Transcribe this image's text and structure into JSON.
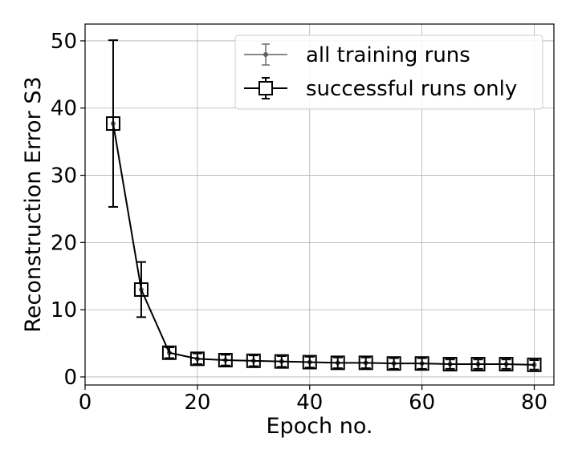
{
  "chart_data": {
    "type": "line",
    "title": "",
    "xlabel": "Epoch no.",
    "ylabel": "Reconstruction Error S3",
    "xlim": [
      0,
      83.5
    ],
    "ylim": [
      -1.2,
      52.5
    ],
    "xticks": [
      0,
      20,
      40,
      60,
      80
    ],
    "yticks": [
      0,
      10,
      20,
      30,
      40,
      50
    ],
    "xtick_labels": [
      "0",
      "20",
      "40",
      "60",
      "80"
    ],
    "ytick_labels": [
      "0",
      "10",
      "20",
      "30",
      "40",
      "50"
    ],
    "grid": true,
    "legend_position": "top-right",
    "x": [
      5,
      10,
      15,
      20,
      25,
      30,
      35,
      40,
      45,
      50,
      55,
      60,
      65,
      70,
      75,
      80
    ],
    "series": [
      {
        "name": "all training runs",
        "marker": "dot",
        "color": "#606060",
        "values": [
          37.7,
          13.0,
          3.6,
          2.7,
          2.5,
          2.4,
          2.3,
          2.2,
          2.1,
          2.1,
          2.0,
          2.0,
          1.9,
          1.9,
          1.9,
          1.8
        ],
        "errors": [
          12.4,
          4.1,
          0.8,
          0.8,
          0.8,
          0.8,
          0.8,
          0.8,
          0.8,
          0.8,
          0.8,
          0.8,
          0.7,
          0.7,
          0.7,
          0.7
        ]
      },
      {
        "name": "successful runs only",
        "marker": "square",
        "color": "#000000",
        "values": [
          37.7,
          13.0,
          3.6,
          2.7,
          2.5,
          2.4,
          2.3,
          2.2,
          2.1,
          2.1,
          2.0,
          2.0,
          1.9,
          1.9,
          1.9,
          1.8
        ],
        "errors": [
          12.4,
          4.1,
          0.8,
          0.8,
          0.8,
          0.8,
          0.8,
          0.8,
          0.8,
          0.8,
          0.8,
          0.8,
          0.7,
          0.7,
          0.7,
          0.7
        ]
      }
    ]
  }
}
